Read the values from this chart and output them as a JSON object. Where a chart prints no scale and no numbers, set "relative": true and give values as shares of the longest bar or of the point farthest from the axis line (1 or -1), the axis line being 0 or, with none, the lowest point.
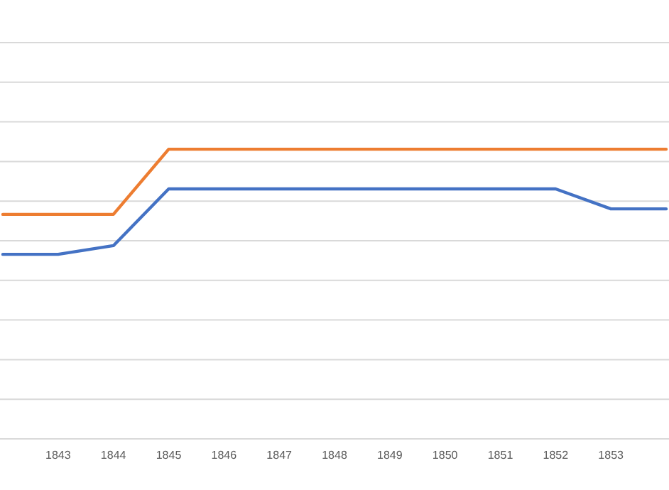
{
  "chart_data": {
    "type": "line",
    "relative": true,
    "grid": "y",
    "marker": "none",
    "line_style": "solid",
    "categories": [
      null,
      "1843",
      "1844",
      "1845",
      "1846",
      "1847",
      "1848",
      "1849",
      "1850",
      "1851",
      "1852",
      "1853",
      null
    ],
    "series": [
      {
        "color": "#ed7d31",
        "values": [
          0.775,
          0.775,
          0.775,
          1,
          1,
          1,
          1,
          1,
          1,
          1,
          1,
          1,
          1
        ]
      },
      {
        "color": "#4472c4",
        "values": [
          0.637,
          0.637,
          0.667,
          0.863,
          0.863,
          0.863,
          0.863,
          0.863,
          0.863,
          0.863,
          0.863,
          0.794,
          0.794
        ]
      }
    ]
  }
}
